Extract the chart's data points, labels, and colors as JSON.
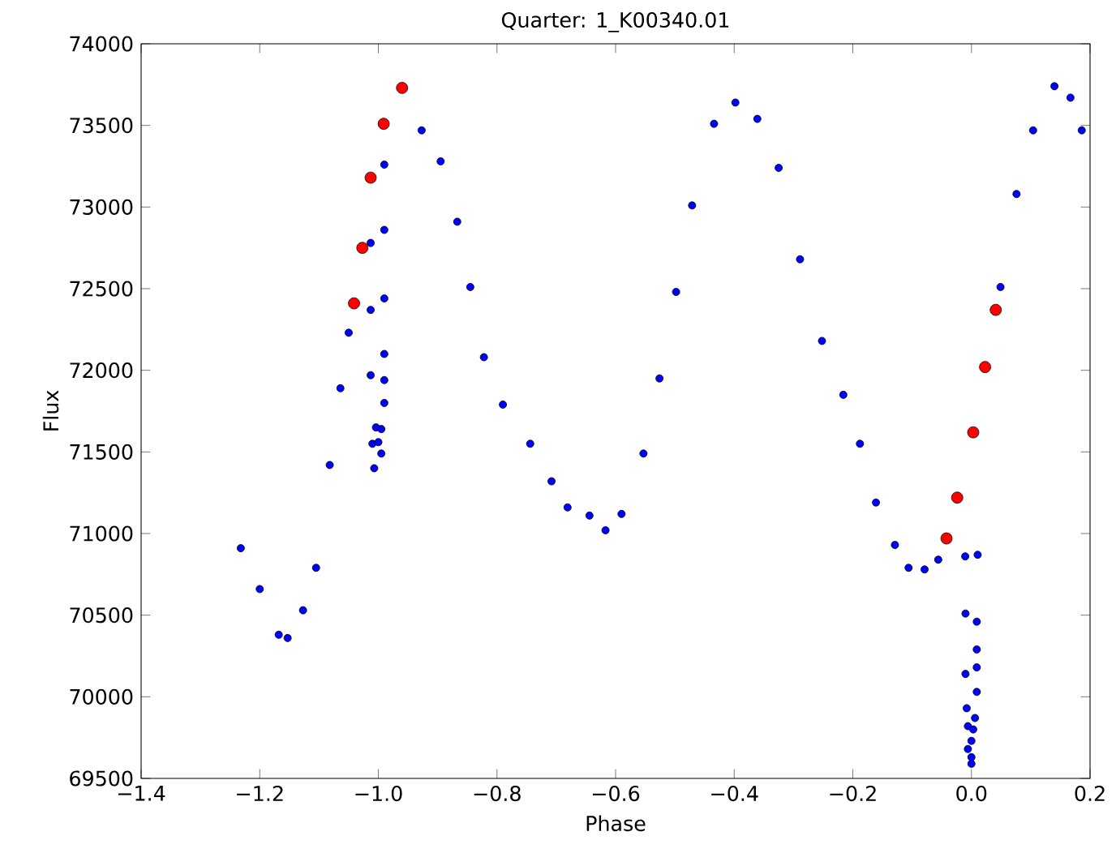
{
  "chart_data": {
    "type": "scatter",
    "title": "Quarter: 1_K00340.01",
    "xlabel": "Phase",
    "ylabel": "Flux",
    "xlim": [
      -1.4,
      0.2
    ],
    "ylim": [
      69500,
      74000
    ],
    "xticks": [
      {
        "value": -1.4,
        "label": "−1.4"
      },
      {
        "value": -1.2,
        "label": "−1.2"
      },
      {
        "value": -1.0,
        "label": "−1.0"
      },
      {
        "value": -0.8,
        "label": "−0.8"
      },
      {
        "value": -0.6,
        "label": "−0.6"
      },
      {
        "value": -0.4,
        "label": "−0.4"
      },
      {
        "value": -0.2,
        "label": "−0.2"
      },
      {
        "value": 0,
        "label": "0.0"
      },
      0.2
    ],
    "yticks": [
      69500,
      70000,
      70500,
      71000,
      71500,
      72000,
      72500,
      73000,
      73500,
      74000
    ],
    "marker": "circle",
    "grid": false,
    "series": [
      {
        "color": "#0000ff",
        "x": [
          -1.232,
          -1.2,
          -1.168,
          -1.153,
          -1.127,
          -1.105,
          -1.082,
          -1.064,
          -1.05,
          -0.927,
          -0.895,
          -0.867,
          -0.845,
          -0.822,
          -0.79,
          -0.744,
          -0.708,
          -0.681,
          -0.644,
          -0.617,
          -0.59,
          -0.553,
          -0.526,
          -0.498,
          -0.471,
          -0.434,
          -0.398,
          -0.361,
          -0.325,
          -0.289,
          -0.252,
          -0.216,
          -0.188,
          -0.161,
          -0.129,
          -0.106,
          -0.079,
          -0.056,
          0.049,
          0.076,
          0.104,
          0.14,
          0.167,
          0.186,
          -0.99,
          -0.99,
          -1.013,
          -0.99,
          -1.013,
          -0.99,
          -1.013,
          -0.99,
          -0.99,
          -1.004,
          -0.995,
          -1.01,
          -1.0,
          -0.995,
          -1.007,
          -0.0105,
          0.0105,
          -0.01,
          0.009,
          0.009,
          -0.01,
          0.009,
          0.009,
          -0.008,
          0.006,
          -0.006,
          0.003,
          0.0,
          -0.006,
          0.0,
          0.0
        ],
        "values": [
          70910,
          70660,
          70380,
          70360,
          70530,
          70790,
          71420,
          71890,
          72230,
          73470,
          73280,
          72910,
          72510,
          72080,
          71790,
          71550,
          71320,
          71160,
          71110,
          71020,
          71120,
          71490,
          71950,
          72480,
          73010,
          73510,
          73640,
          73540,
          73240,
          72680,
          72180,
          71850,
          71550,
          71190,
          70930,
          70790,
          70780,
          70840,
          72510,
          73080,
          73470,
          73740,
          73670,
          73470,
          73260,
          72860,
          72780,
          72440,
          72370,
          72100,
          71970,
          71940,
          71800,
          71650,
          71640,
          71550,
          71560,
          71490,
          71400,
          70860,
          70870,
          70510,
          70460,
          70290,
          70140,
          70180,
          70030,
          69930,
          69870,
          69820,
          69800,
          69730,
          69680,
          69630,
          69590
        ]
      },
      {
        "color": "#ff0000",
        "x": [
          -1.041,
          -1.027,
          -1.013,
          -0.991,
          -0.96,
          -0.042,
          -0.024,
          0.003,
          0.023,
          0.041
        ],
        "values": [
          72410,
          72750,
          73180,
          73510,
          73730,
          70970,
          71220,
          71620,
          72020,
          72370
        ]
      }
    ]
  }
}
